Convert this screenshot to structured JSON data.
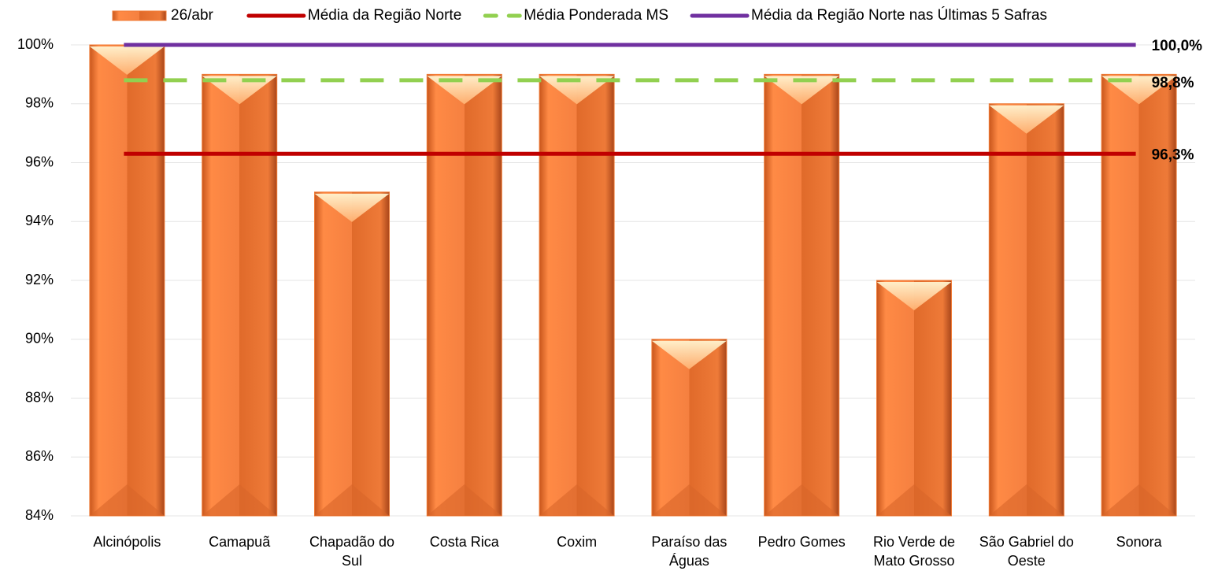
{
  "chart_data": {
    "type": "bar",
    "categories": [
      "Alcinópolis",
      "Camapuã",
      "Chapadão do Sul",
      "Costa Rica",
      "Coxim",
      "Paraíso das Águas",
      "Pedro Gomes",
      "Rio Verde de Mato Grosso",
      "São Gabriel do Oeste",
      "Sonora"
    ],
    "series": [
      {
        "name": "26/abr",
        "color": "#f07b35",
        "values": [
          100,
          99,
          95,
          99,
          99,
          90,
          99,
          92,
          98,
          99
        ]
      }
    ],
    "lines": [
      {
        "name": "Média da Região Norte",
        "color": "#c00000",
        "dashed": false,
        "value": 96.3,
        "value_label": "96,3%"
      },
      {
        "name": "Média Ponderada MS",
        "color": "#92d050",
        "dashed": true,
        "value": 98.8,
        "value_label": "98,8%"
      },
      {
        "name": "Média da Região Norte nas Últimas 5 Safras",
        "color": "#7030a0",
        "dashed": false,
        "value": 100,
        "value_label": "100,0%"
      }
    ],
    "ylim": [
      84,
      100
    ],
    "yticks": [
      {
        "value": 84,
        "label": "84%"
      },
      {
        "value": 86,
        "label": "86%"
      },
      {
        "value": 88,
        "label": "88%"
      },
      {
        "value": 90,
        "label": "90%"
      },
      {
        "value": 92,
        "label": "92%"
      },
      {
        "value": 94,
        "label": "94%"
      },
      {
        "value": 96,
        "label": "96%"
      },
      {
        "value": 98,
        "label": "98%"
      },
      {
        "value": 100,
        "label": "100%"
      }
    ],
    "grid": true,
    "legend": "top"
  }
}
